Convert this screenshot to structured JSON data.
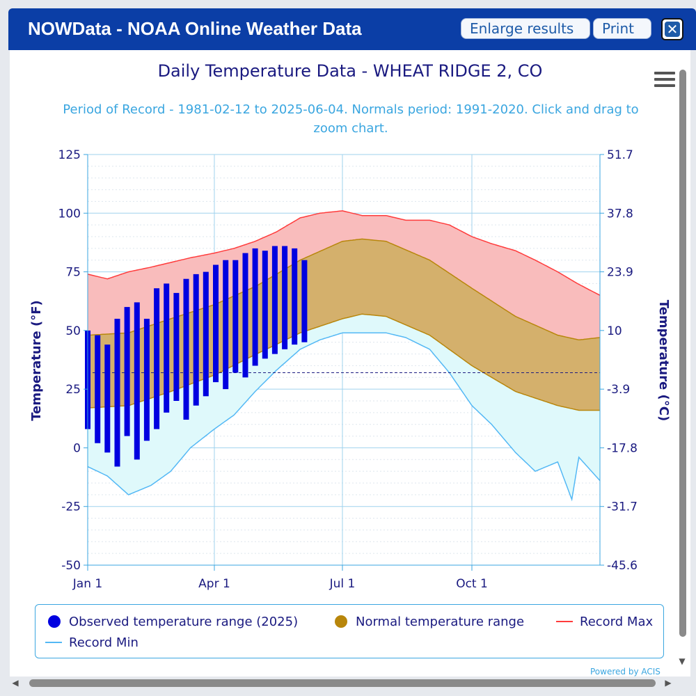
{
  "app": {
    "title": "NOWData - NOAA Online Weather Data",
    "enlarge_label": "Enlarge results",
    "print_label": "Print",
    "close_symbol": "✕"
  },
  "chart_data": {
    "type": "area",
    "title": "Daily Temperature Data - WHEAT RIDGE 2, CO",
    "subtitle": "Period of Record - 1981-02-12 to 2025-06-04. Normals period: 1991-2020. Click and drag to zoom chart.",
    "ylabel": "Temperature (°F)",
    "ylabel_right": "Temperature (°C)",
    "ylim": [
      -50,
      125
    ],
    "yticks": [
      125,
      100,
      75,
      50,
      25,
      0,
      -25,
      -50
    ],
    "yticks_right": [
      "51.7",
      "37.8",
      "23.9",
      "10",
      "-3.9",
      "-17.8",
      "-31.7",
      "-45.6"
    ],
    "xticks": [
      {
        "label": "Jan 1",
        "day": 1
      },
      {
        "label": "Apr 1",
        "day": 91
      },
      {
        "label": "Jul 1",
        "day": 182
      },
      {
        "label": "Oct 1",
        "day": 274
      }
    ],
    "xlim": [
      1,
      365
    ],
    "grid": true,
    "legend_position": "bottom",
    "legend": [
      "Observed temperature range (2025)",
      "Normal temperature range",
      "Record Max",
      "Record Min"
    ],
    "colors": {
      "observed": "#0000e0",
      "normal_fill": "#d4b06c",
      "normal_edge": "#b8860b",
      "normal_legend": "#b8860b",
      "record_max": "#ff3b3b",
      "record_max_fill": "#f9bcbc",
      "record_min": "#53b8f5",
      "record_min_fill": "#dff9fb",
      "axis_text": "#1a1a80"
    },
    "reference_line": {
      "y": 32,
      "style": "dashed"
    },
    "series": [
      {
        "name": "Record Max",
        "x": [
          1,
          15,
          30,
          46,
          60,
          74,
          91,
          105,
          120,
          135,
          152,
          166,
          182,
          196,
          213,
          227,
          244,
          258,
          274,
          288,
          305,
          319,
          335,
          349,
          365
        ],
        "values": [
          74,
          72,
          75,
          77,
          79,
          81,
          83,
          85,
          88,
          92,
          98,
          100,
          101,
          99,
          99,
          97,
          97,
          95,
          90,
          87,
          84,
          80,
          75,
          70,
          65
        ]
      },
      {
        "name": "Normal High",
        "x": [
          1,
          30,
          60,
          91,
          121,
          152,
          182,
          196,
          213,
          244,
          274,
          305,
          335,
          350,
          365
        ],
        "values": [
          48,
          49,
          55,
          61,
          69,
          80,
          88,
          89,
          88,
          80,
          68,
          56,
          48,
          46,
          47
        ]
      },
      {
        "name": "Normal Low",
        "x": [
          1,
          30,
          60,
          91,
          121,
          152,
          182,
          196,
          213,
          244,
          274,
          305,
          335,
          350,
          365
        ],
        "values": [
          17,
          18,
          24,
          31,
          40,
          49,
          55,
          57,
          56,
          48,
          35,
          24,
          18,
          16,
          16
        ]
      },
      {
        "name": "Record Min",
        "x": [
          1,
          15,
          30,
          46,
          60,
          74,
          91,
          105,
          120,
          135,
          152,
          166,
          182,
          196,
          213,
          227,
          244,
          258,
          274,
          288,
          305,
          319,
          335,
          345,
          350,
          365
        ],
        "values": [
          -8,
          -12,
          -20,
          -16,
          -10,
          0,
          8,
          14,
          24,
          33,
          42,
          46,
          49,
          49,
          49,
          47,
          42,
          32,
          18,
          10,
          -2,
          -10,
          -6,
          -22,
          -4,
          -14
        ]
      },
      {
        "name": "Observed temperature range (2025)",
        "x": [
          1,
          8,
          15,
          22,
          29,
          36,
          43,
          50,
          57,
          64,
          71,
          78,
          85,
          92,
          99,
          106,
          113,
          120,
          127,
          134,
          141,
          148,
          155
        ],
        "low": [
          8,
          2,
          -2,
          -8,
          5,
          -5,
          3,
          8,
          15,
          20,
          12,
          18,
          22,
          28,
          25,
          32,
          30,
          35,
          38,
          40,
          42,
          44,
          45
        ],
        "high": [
          50,
          48,
          44,
          55,
          60,
          62,
          55,
          68,
          70,
          66,
          72,
          74,
          75,
          78,
          80,
          80,
          83,
          85,
          84,
          86,
          86,
          85,
          80
        ]
      }
    ]
  },
  "legend_labels": {
    "observed": "Observed temperature range (2025)",
    "normal": "Normal temperature range",
    "record_max": "Record Max",
    "record_min": "Record Min"
  },
  "footer": {
    "powered_by": "Powered by ACIS"
  },
  "icons": {
    "menu": "hamburger-menu-icon",
    "close": "close-icon"
  }
}
